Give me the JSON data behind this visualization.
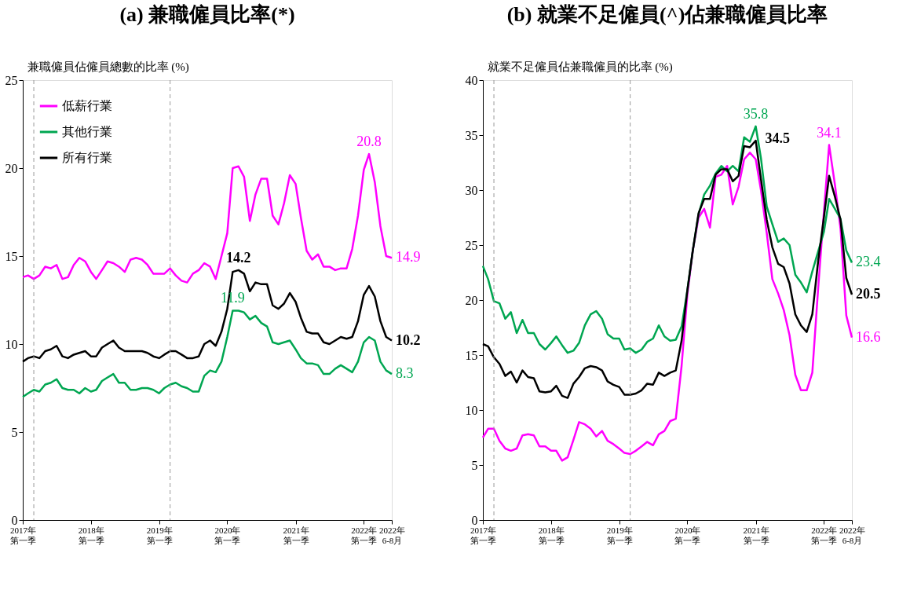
{
  "chart_data": [
    {
      "type": "line",
      "title": "(a) 兼職僱員比率(*)",
      "ylabel": "兼職僱員佔僱員總數的比率 (%)",
      "x": [
        "2017-02",
        "2017-03",
        "2017-04",
        "2017-05",
        "2017-06",
        "2017-07",
        "2017-08",
        "2017-09",
        "2017-10",
        "2017-11",
        "2017-12",
        "2018-01",
        "2018-02",
        "2018-03",
        "2018-04",
        "2018-05",
        "2018-06",
        "2018-07",
        "2018-08",
        "2018-09",
        "2018-10",
        "2018-11",
        "2018-12",
        "2019-01",
        "2019-02",
        "2019-03",
        "2019-04",
        "2019-05",
        "2019-06",
        "2019-07",
        "2019-08",
        "2019-09",
        "2019-10",
        "2019-11",
        "2019-12",
        "2020-01",
        "2020-02",
        "2020-03",
        "2020-04",
        "2020-05",
        "2020-06",
        "2020-07",
        "2020-08",
        "2020-09",
        "2020-10",
        "2020-11",
        "2020-12",
        "2021-01",
        "2021-02",
        "2021-03",
        "2021-04",
        "2021-05",
        "2021-06",
        "2021-07",
        "2021-08",
        "2021-09",
        "2021-10",
        "2021-11",
        "2021-12",
        "2022-01",
        "2022-02",
        "2022-03",
        "2022-04",
        "2022-05",
        "2022-06",
        "2022-07"
      ],
      "series": [
        {
          "name": "低薪行業",
          "color": "#ff00ff",
          "values": [
            13.8,
            13.9,
            13.7,
            13.9,
            14.4,
            14.3,
            14.5,
            13.7,
            13.8,
            14.5,
            14.9,
            14.7,
            14.1,
            13.7,
            14.2,
            14.7,
            14.6,
            14.4,
            14.1,
            14.8,
            14.9,
            14.8,
            14.5,
            14.0,
            14.0,
            14.0,
            14.3,
            13.9,
            13.6,
            13.5,
            14.0,
            14.2,
            14.6,
            14.4,
            13.7,
            15.0,
            16.3,
            20.0,
            20.1,
            19.5,
            17.0,
            18.5,
            19.4,
            19.4,
            17.3,
            16.8,
            18.0,
            19.6,
            19.1,
            17.2,
            15.3,
            14.8,
            15.1,
            14.4,
            14.4,
            14.2,
            14.3,
            14.3,
            15.4,
            17.3,
            19.9,
            20.8,
            19.2,
            16.7,
            15.0,
            14.9
          ]
        },
        {
          "name": "其他行業",
          "color": "#00a651",
          "values": [
            7.0,
            7.2,
            7.4,
            7.3,
            7.7,
            7.8,
            8.0,
            7.5,
            7.4,
            7.4,
            7.2,
            7.5,
            7.3,
            7.4,
            7.9,
            8.1,
            8.3,
            7.8,
            7.8,
            7.4,
            7.4,
            7.5,
            7.5,
            7.4,
            7.2,
            7.5,
            7.7,
            7.8,
            7.6,
            7.5,
            7.3,
            7.3,
            8.2,
            8.5,
            8.4,
            9.0,
            10.4,
            11.9,
            11.9,
            11.8,
            11.4,
            11.6,
            11.2,
            11.0,
            10.1,
            10.0,
            10.1,
            10.2,
            9.7,
            9.2,
            8.9,
            8.9,
            8.8,
            8.3,
            8.3,
            8.6,
            8.8,
            8.6,
            8.4,
            9.0,
            10.1,
            10.4,
            10.2,
            9.0,
            8.5,
            8.3
          ]
        },
        {
          "name": "所有行業",
          "color": "#000000",
          "values": [
            9.0,
            9.2,
            9.3,
            9.2,
            9.6,
            9.7,
            9.9,
            9.3,
            9.2,
            9.4,
            9.5,
            9.6,
            9.3,
            9.3,
            9.8,
            10.0,
            10.2,
            9.8,
            9.6,
            9.6,
            9.6,
            9.6,
            9.5,
            9.3,
            9.2,
            9.4,
            9.6,
            9.6,
            9.4,
            9.2,
            9.2,
            9.3,
            10.0,
            10.2,
            9.9,
            10.7,
            12.0,
            14.1,
            14.2,
            14.0,
            13.0,
            13.5,
            13.4,
            13.4,
            12.2,
            12.0,
            12.3,
            12.9,
            12.4,
            11.5,
            10.7,
            10.6,
            10.6,
            10.1,
            10.0,
            10.2,
            10.4,
            10.3,
            10.4,
            11.3,
            12.8,
            13.3,
            12.7,
            11.3,
            10.4,
            10.2
          ]
        }
      ],
      "xlim": [
        "2017-02",
        "2022-07"
      ],
      "xticks": [
        {
          "value": "2017-02",
          "label": "2017年第一季"
        },
        {
          "value": "2018-02",
          "label": "2018年第一季"
        },
        {
          "value": "2019-02",
          "label": "2019年第一季"
        },
        {
          "value": "2020-02",
          "label": "2020年第一季"
        },
        {
          "value": "2021-02",
          "label": "2021年第一季"
        },
        {
          "value": "2022-02",
          "label": "2022年第一季"
        },
        {
          "value": "2022-07",
          "label": "2022年6-8月"
        }
      ],
      "ylim": [
        0,
        25
      ],
      "yticks": [
        0,
        5,
        10,
        15,
        20,
        25
      ],
      "grid": false,
      "legend": "top left",
      "ref_lines": [
        {
          "axis": "x",
          "value": "2017-04",
          "color": "#999999",
          "line_style": "dashed"
        },
        {
          "axis": "x",
          "value": "2019-04",
          "color": "#999999",
          "line_style": "dashed"
        }
      ],
      "annotations": [
        {
          "text": "20.8",
          "x": "2022-03",
          "y": 20.8
        },
        {
          "text": "14.2",
          "x": "2020-04",
          "y": 14.2
        },
        {
          "text": "11.9",
          "x": "2020-03",
          "y": 11.9
        },
        {
          "text": "14.9",
          "x": "2022-07",
          "y": 14.9
        },
        {
          "text": "10.2",
          "x": "2022-07",
          "y": 10.2
        },
        {
          "text": "8.3",
          "x": "2022-07",
          "y": 8.3
        }
      ]
    },
    {
      "type": "line",
      "title": "(b) 就業不足僱員(^)佔兼職僱員比率",
      "ylabel": "就業不足僱員佔兼職僱員的比率 (%)",
      "x": [
        "2017-02",
        "2017-03",
        "2017-04",
        "2017-05",
        "2017-06",
        "2017-07",
        "2017-08",
        "2017-09",
        "2017-10",
        "2017-11",
        "2017-12",
        "2018-01",
        "2018-02",
        "2018-03",
        "2018-04",
        "2018-05",
        "2018-06",
        "2018-07",
        "2018-08",
        "2018-09",
        "2018-10",
        "2018-11",
        "2018-12",
        "2019-01",
        "2019-02",
        "2019-03",
        "2019-04",
        "2019-05",
        "2019-06",
        "2019-07",
        "2019-08",
        "2019-09",
        "2019-10",
        "2019-11",
        "2019-12",
        "2020-01",
        "2020-02",
        "2020-03",
        "2020-04",
        "2020-05",
        "2020-06",
        "2020-07",
        "2020-08",
        "2020-09",
        "2020-10",
        "2020-11",
        "2020-12",
        "2021-01",
        "2021-02",
        "2021-03",
        "2021-04",
        "2021-05",
        "2021-06",
        "2021-07",
        "2021-08",
        "2021-09",
        "2021-10",
        "2021-11",
        "2021-12",
        "2022-01",
        "2022-02",
        "2022-03",
        "2022-04",
        "2022-05",
        "2022-06",
        "2022-07"
      ],
      "series": [
        {
          "name": "低薪行業",
          "color": "#ff00ff",
          "values": [
            7.5,
            8.3,
            8.3,
            7.2,
            6.5,
            6.3,
            6.5,
            7.7,
            7.8,
            7.7,
            6.7,
            6.7,
            6.3,
            6.3,
            5.4,
            5.7,
            7.3,
            8.9,
            8.7,
            8.3,
            7.6,
            8.1,
            7.2,
            6.9,
            6.5,
            6.1,
            6.0,
            6.3,
            6.7,
            7.1,
            6.8,
            7.8,
            8.1,
            9.0,
            9.2,
            14.0,
            20.5,
            24.5,
            27.5,
            28.3,
            26.6,
            31.2,
            31.4,
            32.2,
            28.7,
            30.3,
            32.8,
            33.4,
            32.8,
            30.0,
            26.1,
            21.9,
            20.6,
            19.1,
            16.8,
            13.2,
            11.8,
            11.8,
            13.4,
            21.0,
            28.0,
            34.1,
            30.5,
            26.5,
            18.6,
            16.6
          ]
        },
        {
          "name": "其他行業",
          "color": "#00a651",
          "values": [
            23.1,
            21.9,
            19.9,
            19.7,
            18.3,
            18.9,
            17.0,
            18.2,
            17.0,
            17.0,
            16.0,
            15.5,
            16.1,
            16.7,
            15.9,
            15.2,
            15.4,
            16.1,
            17.7,
            18.7,
            19.0,
            18.3,
            16.9,
            16.5,
            16.5,
            15.5,
            15.6,
            15.2,
            15.5,
            16.2,
            16.5,
            17.7,
            16.7,
            16.3,
            16.4,
            17.6,
            20.9,
            24.5,
            27.8,
            29.6,
            30.4,
            31.5,
            32.2,
            31.7,
            32.2,
            31.7,
            34.8,
            34.4,
            35.8,
            32.9,
            28.5,
            26.9,
            25.3,
            25.6,
            25.0,
            22.3,
            21.6,
            20.7,
            22.6,
            24.4,
            26.2,
            29.2,
            28.3,
            27.4,
            24.5,
            23.4
          ]
        },
        {
          "name": "所有行業",
          "color": "#000000",
          "values": [
            16.0,
            15.8,
            14.8,
            14.2,
            13.1,
            13.5,
            12.5,
            13.6,
            13.0,
            12.9,
            11.7,
            11.6,
            11.7,
            12.2,
            11.3,
            11.1,
            12.4,
            13.0,
            13.8,
            14.0,
            13.9,
            13.6,
            12.6,
            12.3,
            12.1,
            11.4,
            11.4,
            11.5,
            11.8,
            12.4,
            12.3,
            13.4,
            13.1,
            13.4,
            13.6,
            16.3,
            20.9,
            24.5,
            27.9,
            29.2,
            29.2,
            31.4,
            31.9,
            31.9,
            30.8,
            31.3,
            34.0,
            33.9,
            34.5,
            31.0,
            27.3,
            24.8,
            23.3,
            23.0,
            21.5,
            18.7,
            17.7,
            17.1,
            18.7,
            23.5,
            27.5,
            31.3,
            29.4,
            27.3,
            22.0,
            20.5
          ]
        }
      ],
      "xlim": [
        "2017-02",
        "2022-07"
      ],
      "xticks": [
        {
          "value": "2017-02",
          "label": "2017年第一季"
        },
        {
          "value": "2018-02",
          "label": "2018年第一季"
        },
        {
          "value": "2019-02",
          "label": "2019年第一季"
        },
        {
          "value": "2020-02",
          "label": "2020年第一季"
        },
        {
          "value": "2021-02",
          "label": "2021年第一季"
        },
        {
          "value": "2022-02",
          "label": "2022年第一季"
        },
        {
          "value": "2022-07",
          "label": "2022年6-8月"
        }
      ],
      "ylim": [
        0,
        40
      ],
      "yticks": [
        0,
        5,
        10,
        15,
        20,
        25,
        30,
        35,
        40
      ],
      "grid": false,
      "legend": "top left",
      "ref_lines": [
        {
          "axis": "x",
          "value": "2017-04",
          "color": "#999999",
          "line_style": "dashed"
        },
        {
          "axis": "x",
          "value": "2019-04",
          "color": "#999999",
          "line_style": "dashed"
        }
      ],
      "annotations": [
        {
          "text": "35.8",
          "x": "2021-02",
          "y": 35.8
        },
        {
          "text": "34.5",
          "x": "2021-02",
          "y": 34.5
        },
        {
          "text": "34.1",
          "x": "2022-03",
          "y": 34.1
        },
        {
          "text": "23.4",
          "x": "2022-07",
          "y": 23.4
        },
        {
          "text": "20.5",
          "x": "2022-07",
          "y": 20.5
        },
        {
          "text": "16.6",
          "x": "2022-07",
          "y": 16.6
        }
      ]
    }
  ]
}
